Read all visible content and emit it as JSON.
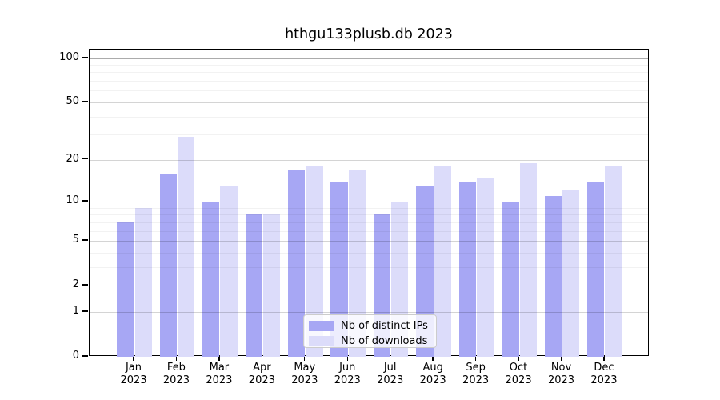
{
  "chart_data": {
    "type": "bar",
    "title": "hthgu133plusb.db 2023",
    "year_label": "2023",
    "categories": [
      "Jan",
      "Feb",
      "Mar",
      "Apr",
      "May",
      "Jun",
      "Jul",
      "Aug",
      "Sep",
      "Oct",
      "Nov",
      "Dec"
    ],
    "series": [
      {
        "name": "Nb of distinct IPs",
        "color": "#a7a7f4",
        "values": [
          7,
          16,
          10,
          8,
          17,
          14,
          8,
          13,
          14,
          10,
          11,
          14
        ]
      },
      {
        "name": "Nb of downloads",
        "color": "#dcdcfa",
        "values": [
          9,
          29,
          13,
          8,
          18,
          17,
          10,
          18,
          15,
          19,
          12,
          18
        ]
      }
    ],
    "y_scale": "log1p",
    "y_tick_labels": [
      0,
      1,
      2,
      5,
      10,
      20,
      50,
      100
    ],
    "y_minor_gridlines": [
      3,
      4,
      6,
      7,
      8,
      9,
      30,
      40,
      60,
      70,
      80,
      90
    ],
    "ylim": [
      0,
      114
    ],
    "grid": true,
    "legend_position": "lower center",
    "background": "#ffffff"
  }
}
